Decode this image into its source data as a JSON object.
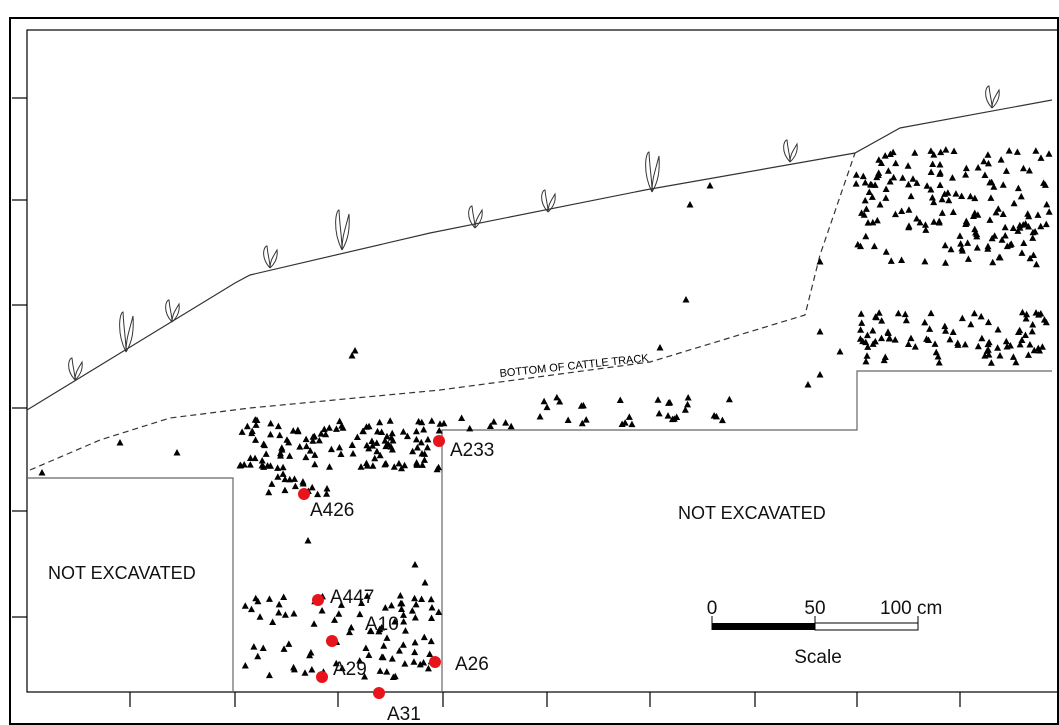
{
  "labels": {
    "cattle_track": "BOTTOM OF CATTLE TRACK",
    "not_excavated_left": "NOT EXCAVATED",
    "not_excavated_right": "NOT EXCAVATED"
  },
  "samples": [
    {
      "label": "A233"
    },
    {
      "label": "A426"
    },
    {
      "label": "A447"
    },
    {
      "label": "A10"
    },
    {
      "label": "A29"
    },
    {
      "label": "A26"
    },
    {
      "label": "A31"
    }
  ],
  "scale": {
    "ticks": [
      "0",
      "50",
      "100 cm"
    ],
    "title": "Scale"
  }
}
